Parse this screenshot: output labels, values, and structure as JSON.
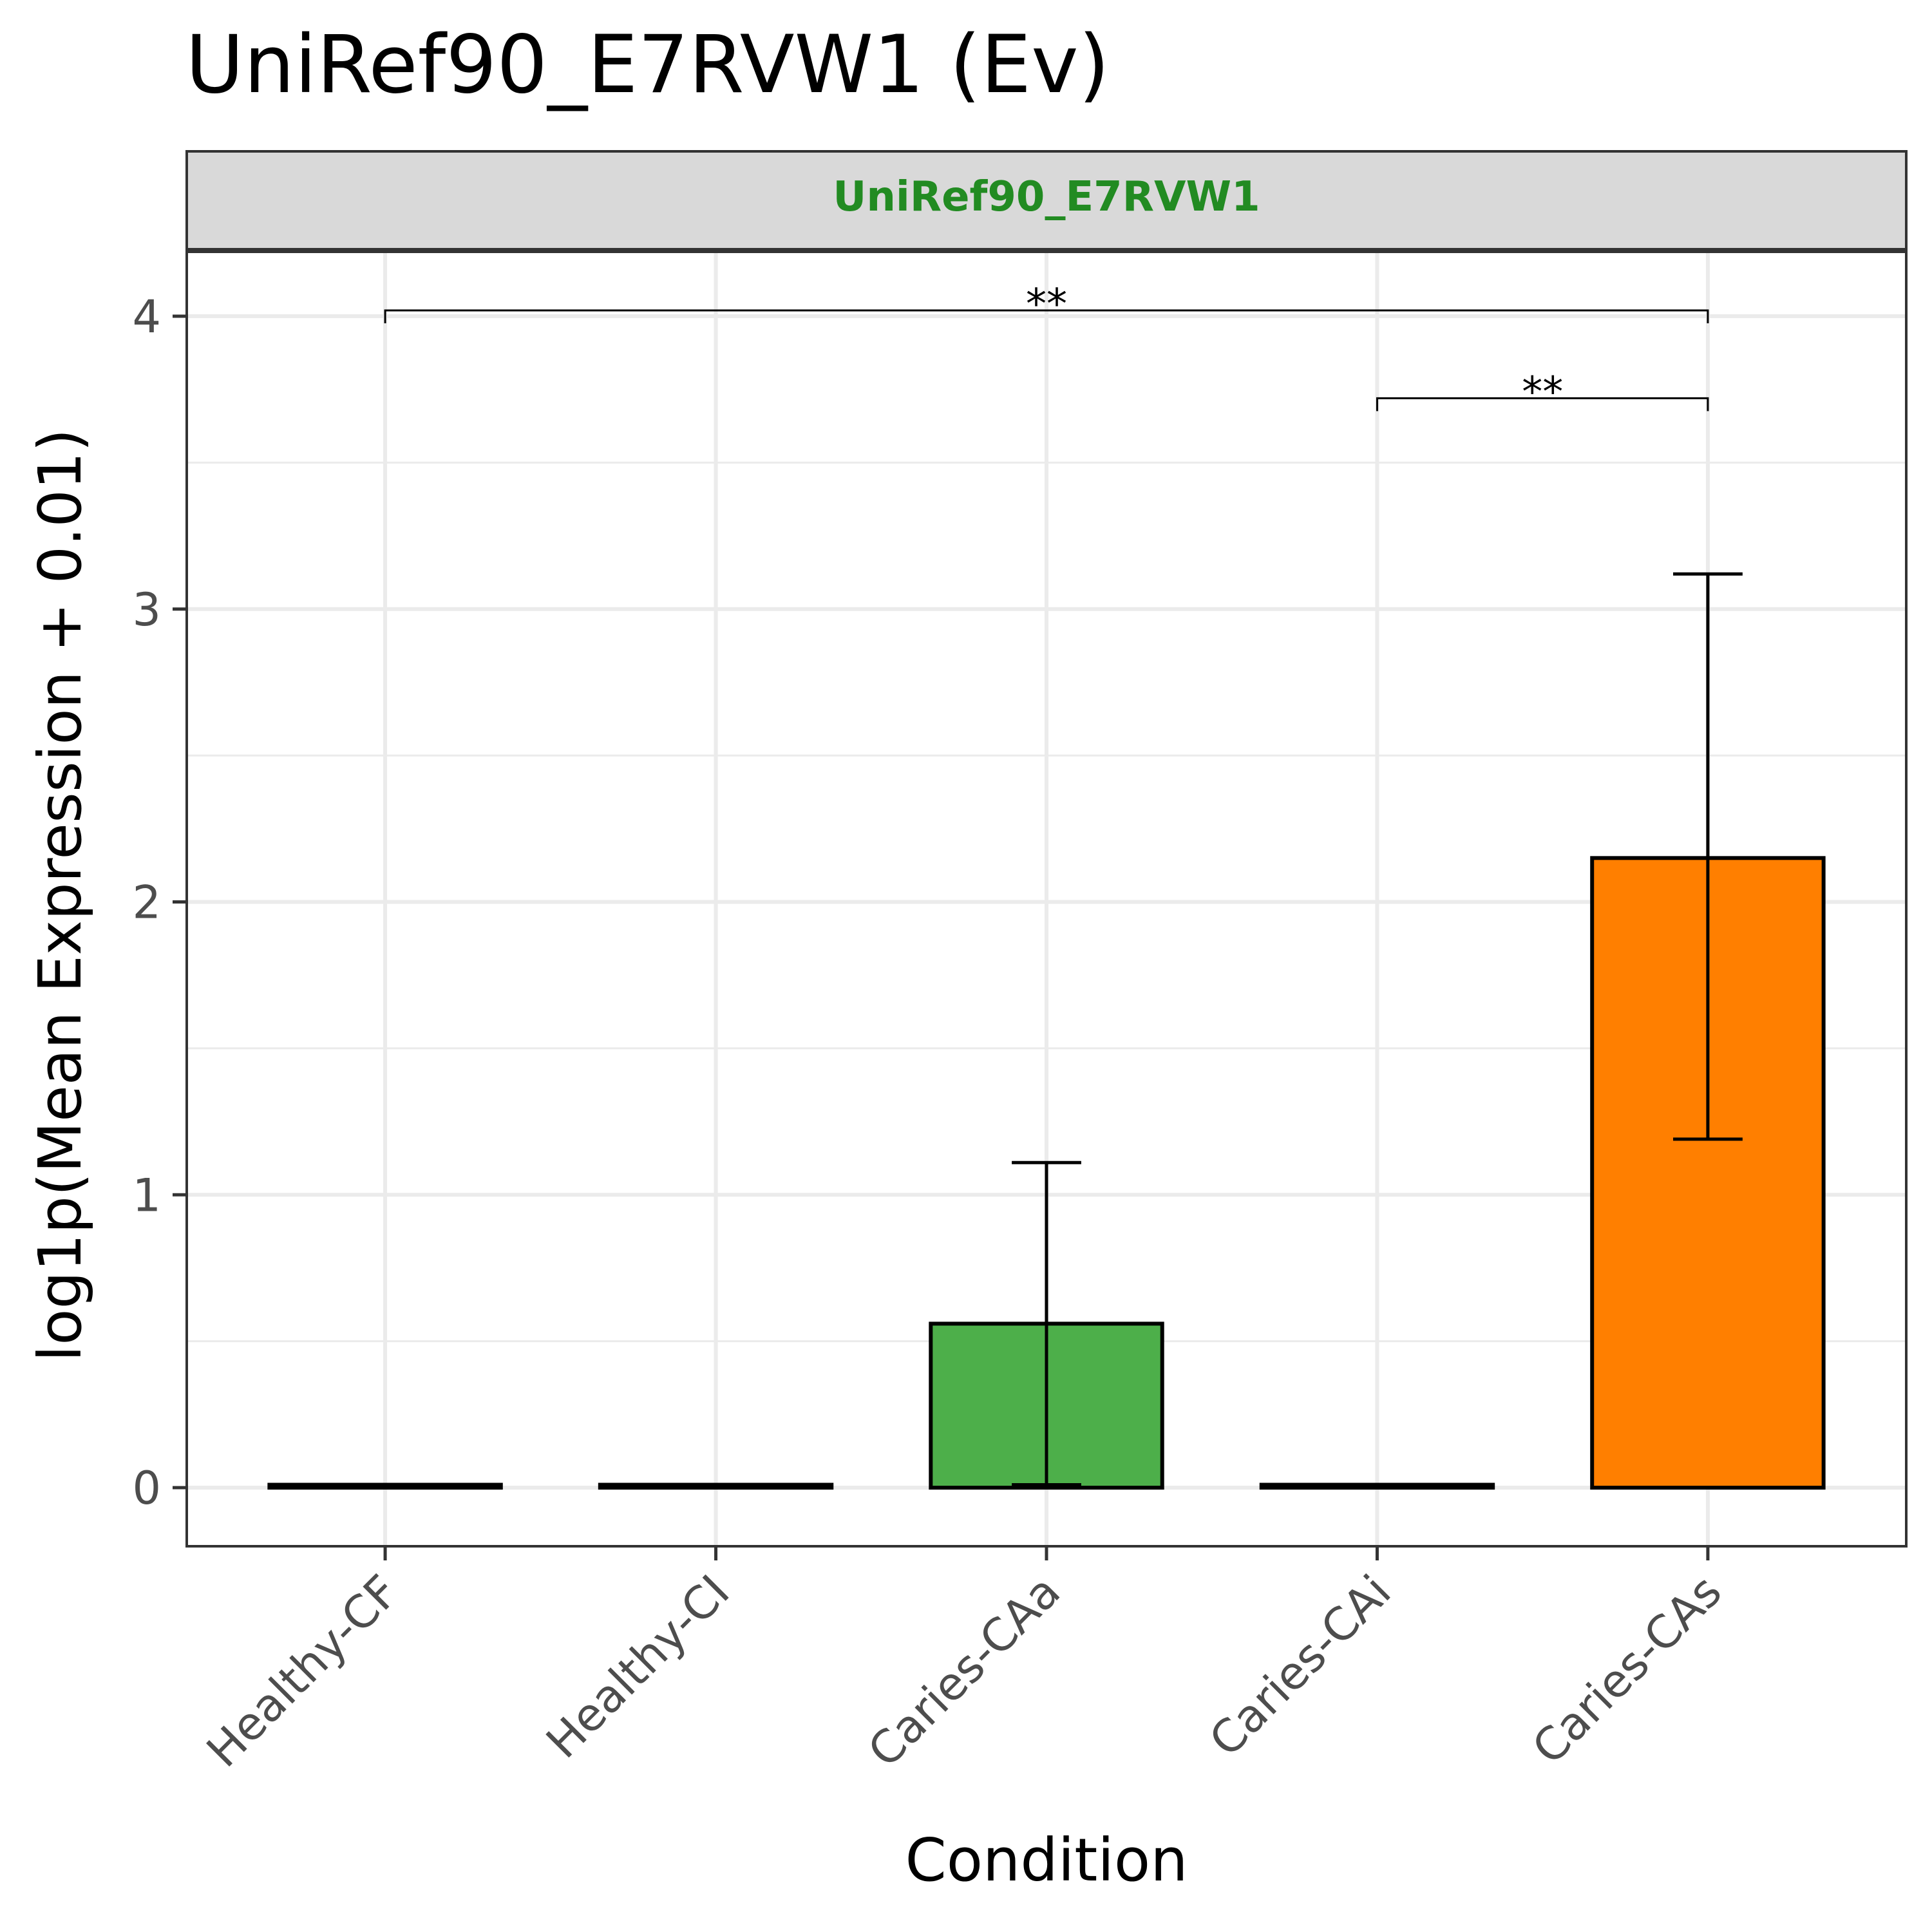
{
  "title": "UniRef90_E7RVW1 (Ev)",
  "facet": {
    "label": "UniRef90_E7RVW1",
    "label_color": "#228b22",
    "strip_fill": "#d9d9d9"
  },
  "chart_data": {
    "type": "bar",
    "xlabel": "Condition",
    "ylabel": "log1p(Mean Expression + 0.01)",
    "ylim": [
      -0.2,
      4.22
    ],
    "yticks": [
      0,
      1,
      2,
      3,
      4
    ],
    "grid": true,
    "categories": [
      "Healthy-CF",
      "Healthy-CI",
      "Caries-CAa",
      "Caries-CAi",
      "Caries-CAs"
    ],
    "values": [
      0.01,
      0.01,
      0.56,
      0.01,
      2.15
    ],
    "error_low": [
      0.01,
      0.01,
      0.01,
      0.01,
      1.19
    ],
    "error_high": [
      0.01,
      0.01,
      1.11,
      0.01,
      3.12
    ],
    "colors": [
      "#377eb8",
      "#984ea3",
      "#4daf4a",
      "#e41a1c",
      "#ff7f00"
    ],
    "significance": [
      {
        "from": 0,
        "to": 4,
        "y": 4.02,
        "label": "**"
      },
      {
        "from": 3,
        "to": 4,
        "y": 3.72,
        "label": "**"
      }
    ]
  }
}
